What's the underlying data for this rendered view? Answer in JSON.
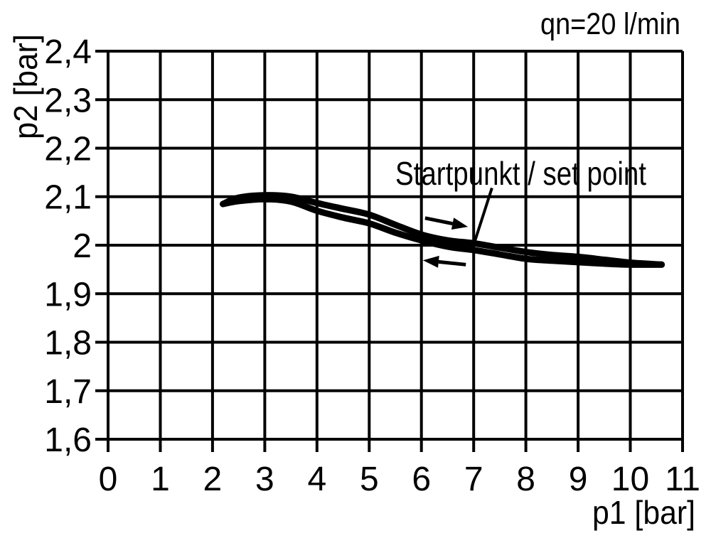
{
  "colors": {
    "ink": "#000000",
    "background": "#ffffff"
  },
  "chart_data": {
    "type": "line",
    "xlabel": "p1 [bar]",
    "ylabel": "p2 [bar]",
    "xlim": [
      0,
      11
    ],
    "ylim": [
      1.6,
      2.4
    ],
    "grid": "on",
    "legend": "none",
    "x_ticks": [
      {
        "value": 0,
        "label": "0"
      },
      {
        "value": 1,
        "label": "1"
      },
      {
        "value": 2,
        "label": "2"
      },
      {
        "value": 3,
        "label": "3"
      },
      {
        "value": 4,
        "label": "4"
      },
      {
        "value": 5,
        "label": "5"
      },
      {
        "value": 6,
        "label": "6"
      },
      {
        "value": 7,
        "label": "7"
      },
      {
        "value": 8,
        "label": "8"
      },
      {
        "value": 9,
        "label": "9"
      },
      {
        "value": 10,
        "label": "10"
      },
      {
        "value": 11,
        "label": "11"
      }
    ],
    "y_ticks": [
      {
        "value": 2.4,
        "label": "2,4"
      },
      {
        "value": 2.3,
        "label": "2,3"
      },
      {
        "value": 2.2,
        "label": "2,2"
      },
      {
        "value": 2.1,
        "label": "2,1"
      },
      {
        "value": 2.0,
        "label": "2"
      },
      {
        "value": 1.9,
        "label": "1,9"
      },
      {
        "value": 1.8,
        "label": "1,8"
      },
      {
        "value": 1.7,
        "label": "1,7"
      },
      {
        "value": 1.6,
        "label": "1,6"
      }
    ],
    "series": [
      {
        "name": "upper-branch-p1-increasing",
        "points": [
          [
            2.2,
            2.085
          ],
          [
            2.5,
            2.098
          ],
          [
            3.0,
            2.103
          ],
          [
            3.5,
            2.1
          ],
          [
            4.0,
            2.087
          ],
          [
            4.5,
            2.075
          ],
          [
            5.0,
            2.063
          ],
          [
            5.5,
            2.042
          ],
          [
            6.0,
            2.022
          ],
          [
            6.5,
            2.01
          ],
          [
            7.0,
            2.004
          ],
          [
            7.5,
            1.995
          ],
          [
            8.0,
            1.986
          ],
          [
            8.5,
            1.98
          ],
          [
            9.0,
            1.976
          ],
          [
            9.5,
            1.97
          ],
          [
            10.0,
            1.964
          ],
          [
            10.6,
            1.96
          ]
        ]
      },
      {
        "name": "lower-branch-p1-decreasing",
        "points": [
          [
            2.2,
            2.085
          ],
          [
            2.5,
            2.091
          ],
          [
            3.0,
            2.095
          ],
          [
            3.5,
            2.09
          ],
          [
            4.0,
            2.071
          ],
          [
            4.5,
            2.057
          ],
          [
            5.0,
            2.045
          ],
          [
            5.5,
            2.026
          ],
          [
            6.0,
            2.01
          ],
          [
            6.5,
            1.997
          ],
          [
            7.0,
            1.99
          ],
          [
            7.5,
            1.981
          ],
          [
            8.0,
            1.972
          ],
          [
            8.5,
            1.968
          ],
          [
            9.0,
            1.965
          ],
          [
            9.5,
            1.962
          ],
          [
            10.0,
            1.96
          ],
          [
            10.6,
            1.96
          ]
        ]
      }
    ],
    "annotations": {
      "flow_rate_label": "qn=20 l/min",
      "set_point_label": "Startpunkt / set point",
      "set_point": [
        7.0,
        2.0
      ],
      "leader_line": [
        [
          7.35,
          2.118
        ],
        [
          7.01,
          2.004
        ]
      ],
      "arrows": [
        {
          "name": "direction-arrow-right",
          "tail": [
            6.07,
            2.056
          ],
          "tip": [
            6.89,
            2.038
          ]
        },
        {
          "name": "direction-arrow-left",
          "tail": [
            6.85,
            1.96
          ],
          "tip": [
            6.03,
            1.969
          ]
        }
      ]
    }
  }
}
